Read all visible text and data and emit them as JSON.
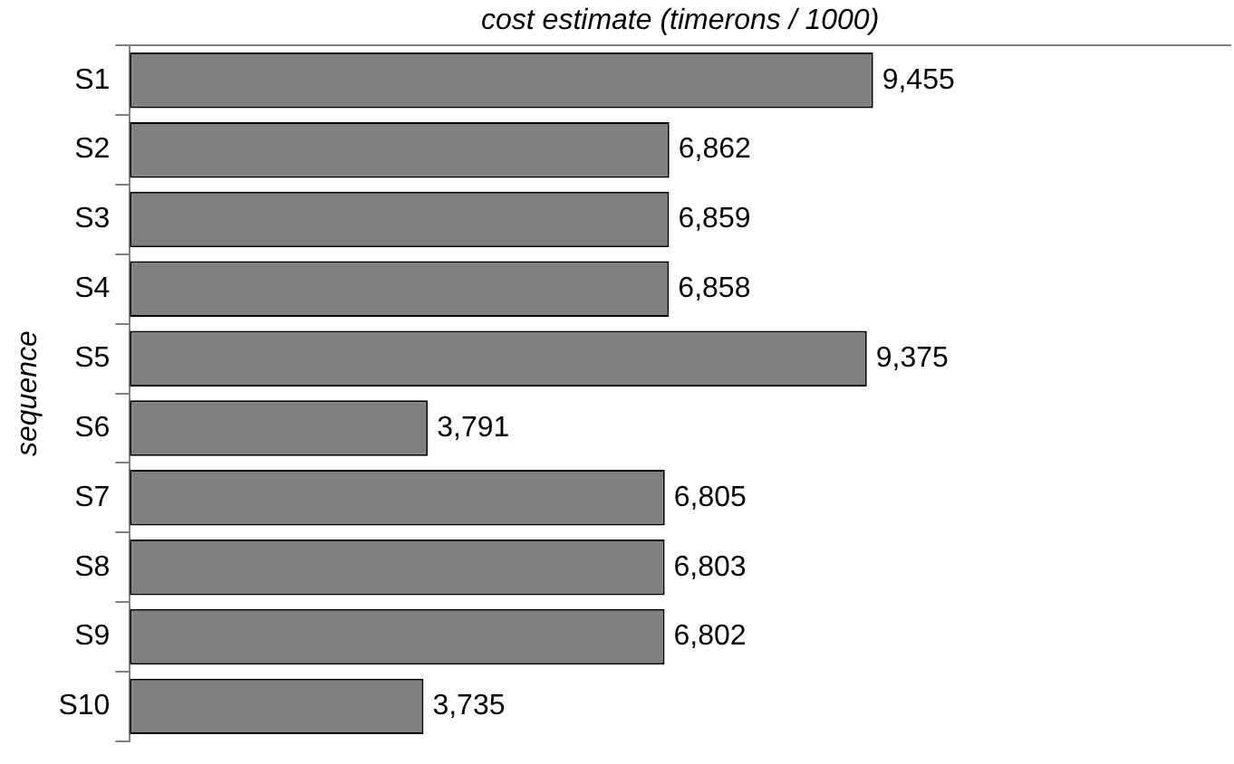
{
  "chart_data": {
    "type": "bar",
    "orientation": "horizontal",
    "xlabel": "cost estimate (timerons / 1000)",
    "ylabel": "sequence",
    "categories": [
      "S1",
      "S2",
      "S3",
      "S4",
      "S5",
      "S6",
      "S7",
      "S8",
      "S9",
      "S10"
    ],
    "values": [
      9455,
      6862,
      6859,
      6858,
      9375,
      3791,
      6805,
      6803,
      6802,
      3735
    ],
    "value_labels": [
      "9,455",
      "6,862",
      "6,859",
      "6,858",
      "9,375",
      "3,791",
      "6,805",
      "6,803",
      "6,802",
      "3,735"
    ],
    "color": "#808080",
    "grid": false,
    "legend": false,
    "tick_labels": "y"
  }
}
